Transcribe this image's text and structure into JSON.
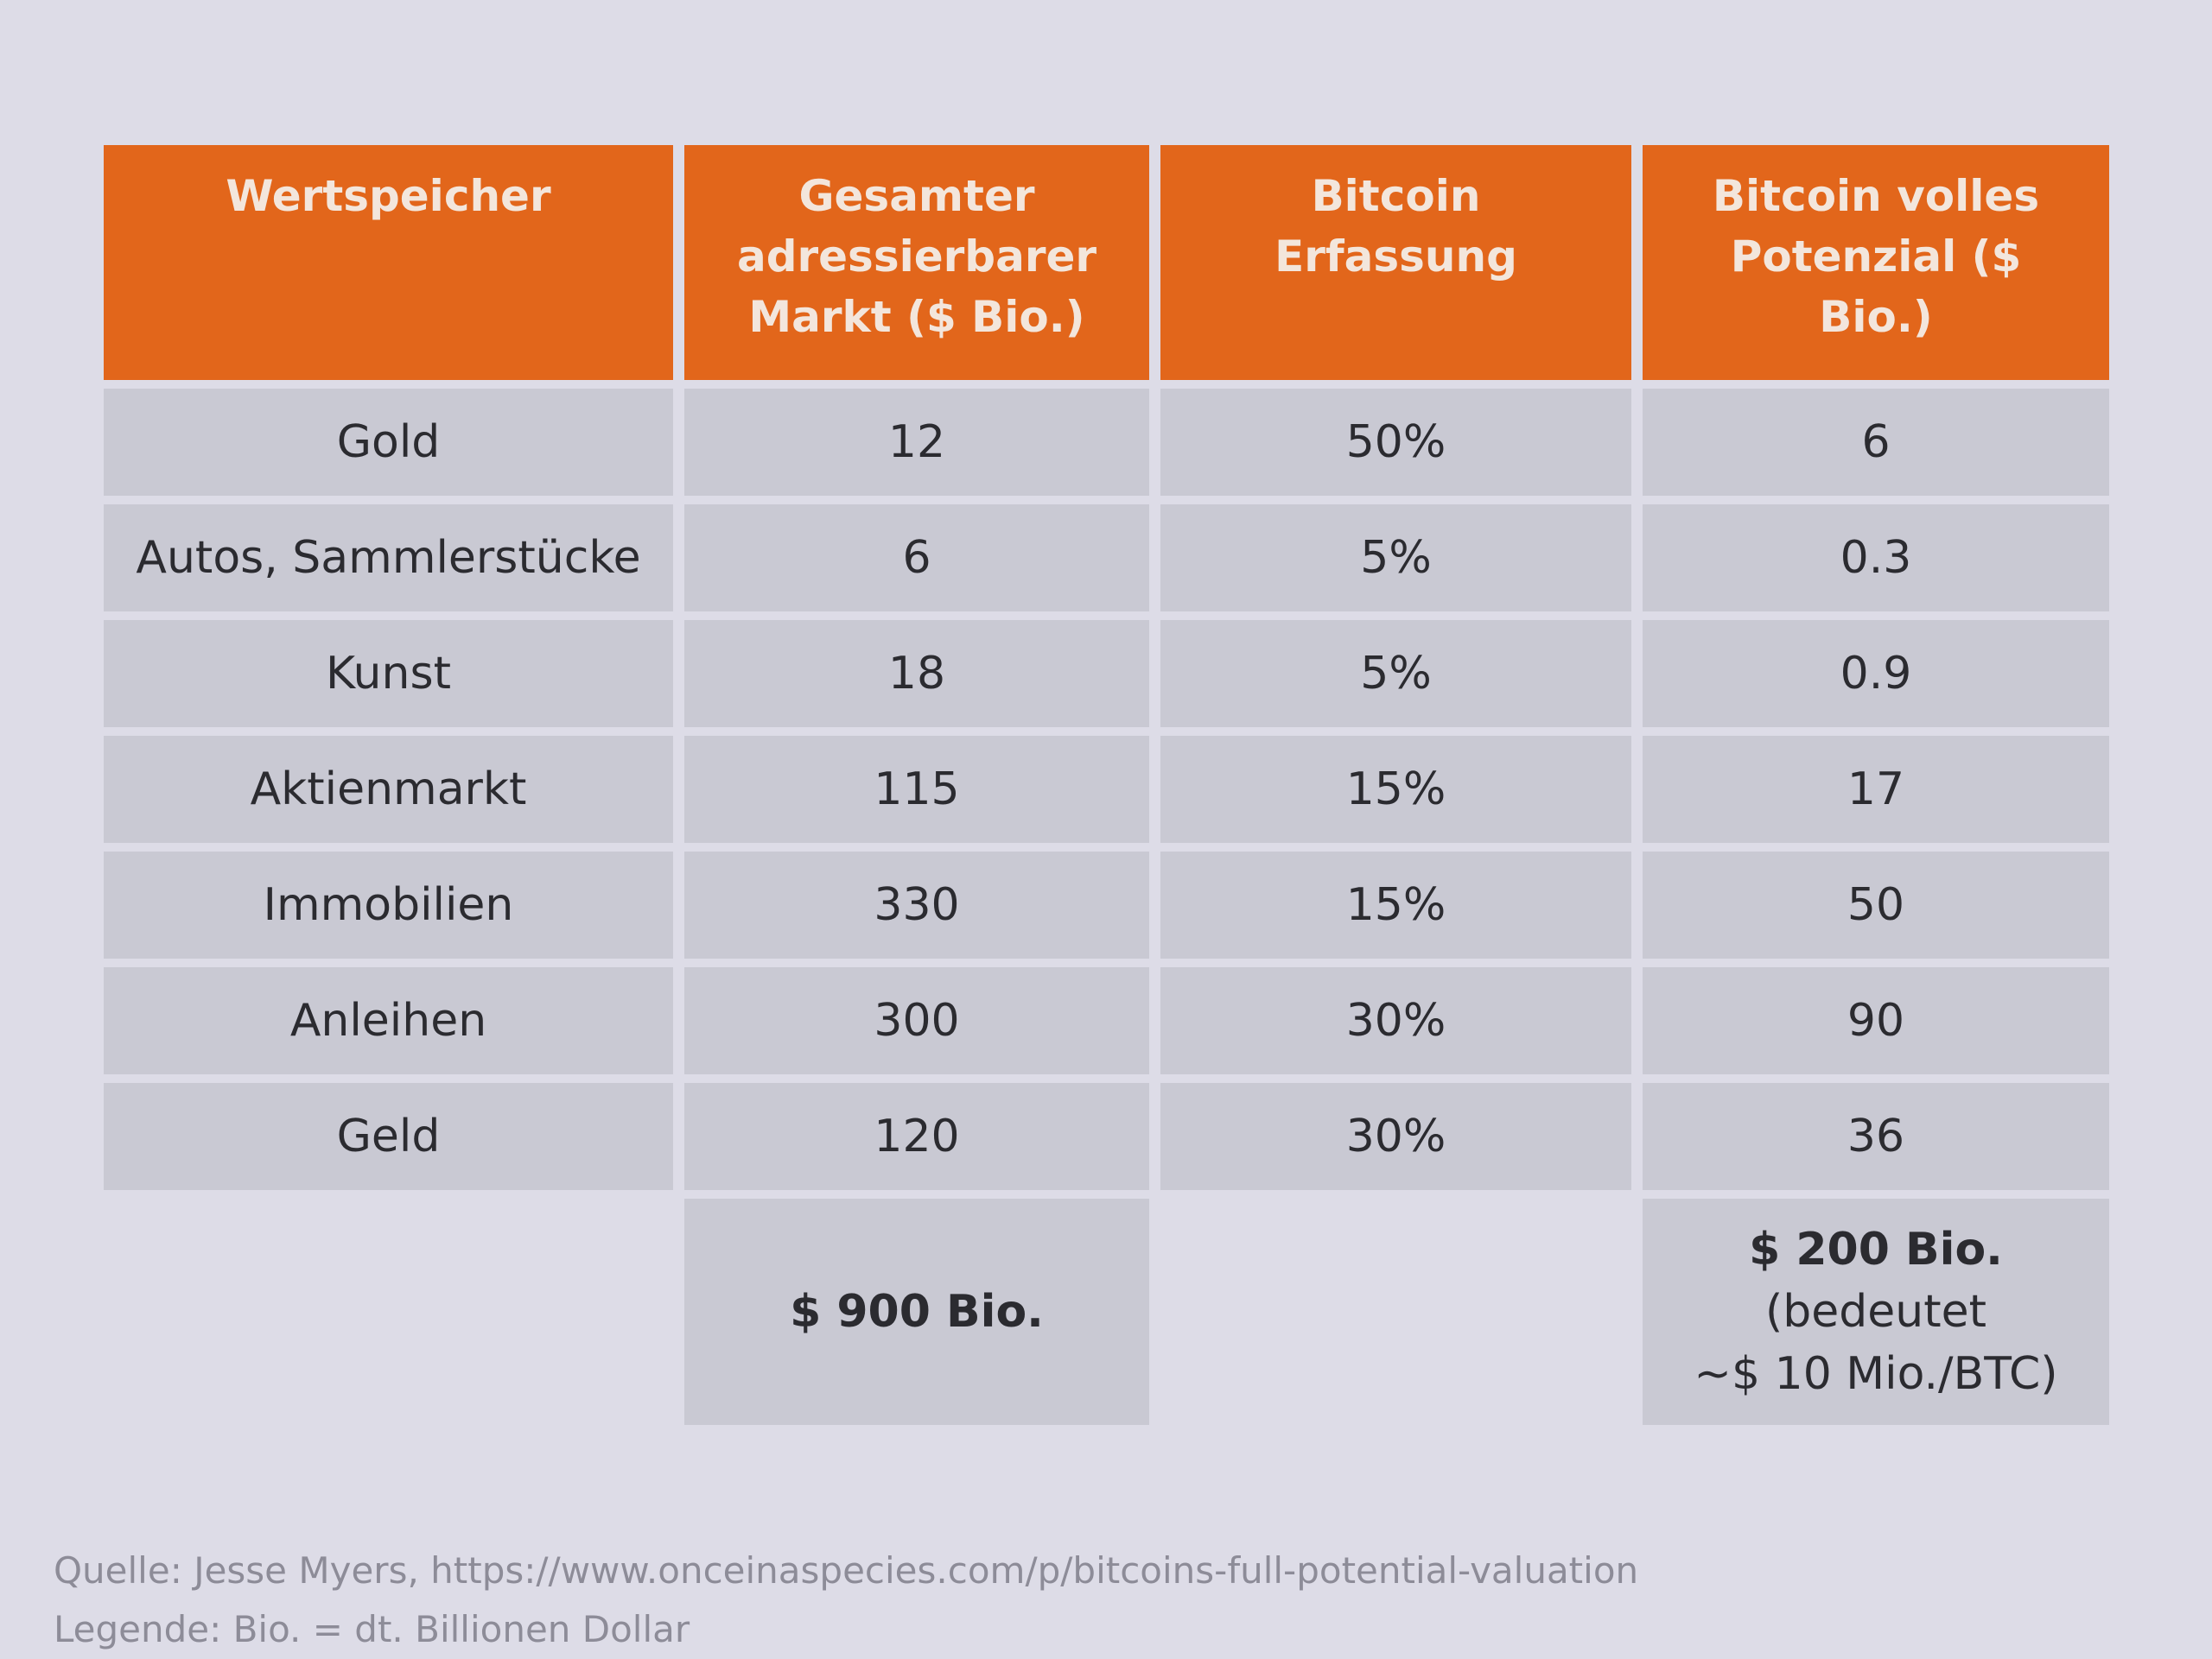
{
  "table": {
    "header": [
      "Wertspeicher",
      "Gesamter adressierbarer Markt ($ Bio.)",
      "Bitcoin Erfassung",
      "Bitcoin volles Potenzial ($ Bio.)"
    ],
    "rows": [
      [
        "Gold",
        "12",
        "50%",
        "6"
      ],
      [
        "Autos, Sammlerstücke",
        "6",
        "5%",
        "0.3"
      ],
      [
        "Kunst",
        "18",
        "5%",
        "0.9"
      ],
      [
        "Aktienmarkt",
        "115",
        "15%",
        "17"
      ],
      [
        "Immobilien",
        "330",
        "15%",
        "50"
      ],
      [
        "Anleihen",
        "300",
        "30%",
        "90"
      ],
      [
        "Geld",
        "120",
        "30%",
        "36"
      ]
    ],
    "totals": {
      "market": [
        "$ 900 Bio."
      ],
      "potential": [
        "$ 200 Bio.",
        "(bedeutet",
        "~$ 10 Mio./BTC)"
      ]
    }
  },
  "footer": {
    "source": "Quelle: Jesse Myers, https://www.onceinaspecies.com/p/bitcoins-full-potential-valuation",
    "legend": "Legende: Bio. = dt. Billionen Dollar"
  }
}
